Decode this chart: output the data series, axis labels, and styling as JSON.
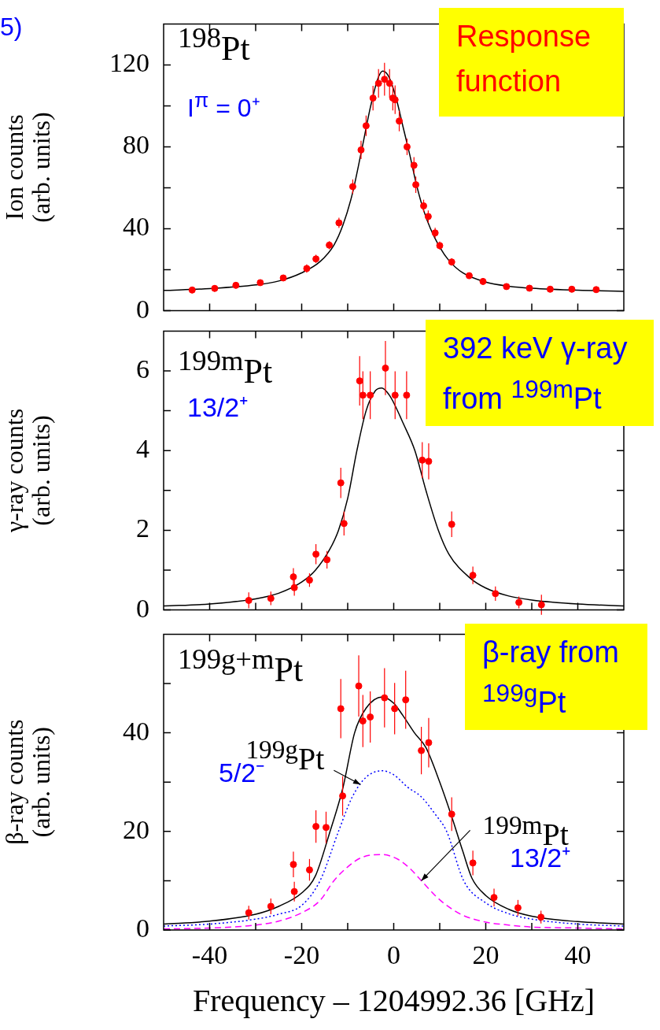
{
  "chart_data": [
    {
      "type": "scatter",
      "ylabel": "Ion counts\n(arb. units)",
      "xlim": [
        -50,
        50
      ],
      "xticks": [
        {
          "value": -40,
          "label": null
        },
        {
          "value": -30,
          "label": null
        },
        {
          "value": -20,
          "label": null
        },
        {
          "value": -10,
          "label": null
        },
        {
          "value": 0,
          "label": null
        },
        {
          "value": 10,
          "label": null
        },
        {
          "value": 20,
          "label": null
        },
        {
          "value": 30,
          "label": null
        },
        {
          "value": 40,
          "label": null
        }
      ],
      "ylim": [
        0,
        140
      ],
      "yticks": [
        0,
        {
          "value": 20,
          "label": null
        },
        40,
        {
          "value": 60,
          "label": null
        },
        80,
        {
          "value": 100,
          "label": null
        },
        120
      ],
      "tick_labels": "y",
      "annotations": [
        "5)",
        "$^{198}$Pt",
        "I$^{π}$ = 0⁺",
        "Response function"
      ],
      "series": [
        {
          "type": "scatter",
          "color": "#ff0000",
          "marker": "circle",
          "x": [
            -43.8,
            -38.9,
            -34.3,
            -29.0,
            -24.0,
            -18.9,
            -16.9,
            -14.0,
            -11.9,
            -8.9,
            -7.1,
            -6.0,
            -4.5,
            -3.3,
            -2.0,
            -0.9,
            -0.2,
            0.3,
            1.2,
            2.9,
            4.4,
            4.8,
            6.5,
            7.5,
            9.0,
            10.0,
            12.6,
            16.4,
            19.4,
            24.5,
            29.5,
            34.0,
            38.7,
            44.0
          ],
          "values": [
            10.1,
            10.9,
            12.4,
            13.7,
            16.0,
            20.6,
            25.3,
            32.0,
            42.9,
            60.6,
            78.5,
            90.3,
            103.8,
            111,
            113,
            111,
            103.8,
            103,
            92.6,
            80,
            71,
            61.5,
            51.2,
            46,
            38,
            31.8,
            23.8,
            17.1,
            14.3,
            11.8,
            11.0,
            10.5,
            10.5,
            10.3
          ],
          "errors": [
            1.5,
            1.5,
            1.5,
            1.5,
            1.5,
            2,
            2,
            2,
            2.5,
            3.5,
            4.5,
            5,
            6,
            7,
            8,
            7,
            6,
            7,
            5,
            4,
            4,
            4,
            3,
            3,
            2.5,
            2,
            1.8,
            1.5,
            1.5,
            1,
            1,
            1,
            1,
            1
          ]
        },
        {
          "type": "line",
          "color": "#000000",
          "marker": "none",
          "line_style": "solid",
          "x": [
            -50,
            -40,
            -30,
            -25,
            -20,
            -16,
            -13,
            -11,
            -9,
            -7,
            -5,
            -3.5,
            -2.4,
            -1,
            0.5,
            2,
            3.5,
            5,
            6.5,
            8,
            10,
            12,
            15,
            20,
            25,
            30,
            40,
            50
          ],
          "values": [
            9.9,
            10.8,
            12.6,
            14.5,
            18.5,
            24,
            32,
            42,
            57,
            78,
            100,
            113,
            117,
            114,
            104,
            90,
            76,
            61,
            49,
            40,
            31,
            24.5,
            18.5,
            14,
            12,
            11,
            10,
            9.5
          ]
        }
      ]
    },
    {
      "type": "scatter",
      "ylabel": "γ-ray counts\n(arb. units)",
      "xlim": [
        -50,
        50
      ],
      "xticks": [
        {
          "value": -40,
          "label": null
        },
        {
          "value": -30,
          "label": null
        },
        {
          "value": -20,
          "label": null
        },
        {
          "value": -10,
          "label": null
        },
        {
          "value": 0,
          "label": null
        },
        {
          "value": 10,
          "label": null
        },
        {
          "value": 20,
          "label": null
        },
        {
          "value": 30,
          "label": null
        },
        {
          "value": 40,
          "label": null
        }
      ],
      "ylim": [
        0,
        7
      ],
      "yticks": [
        0,
        {
          "value": 1,
          "label": null
        },
        2,
        {
          "value": 3,
          "label": null
        },
        4,
        {
          "value": 5,
          "label": null
        },
        6
      ],
      "tick_labels": "y",
      "annotations": [
        "$^{199m}$Pt",
        "13/2⁺",
        "392 keV γ-ray from $^{199m}$Pt"
      ],
      "series": [
        {
          "type": "scatter",
          "color": "#ff0000",
          "marker": "circle",
          "x": [
            -31.5,
            -26.7,
            -21.8,
            -21.6,
            -18.3,
            -16.9,
            -14.5,
            -11.5,
            -10.8,
            -7.4,
            -6.7,
            -5.1,
            -1.8,
            0.3,
            2.8,
            6.2,
            7.6,
            12.6,
            17.2,
            22.1,
            27.2,
            32.1
          ],
          "values": [
            0.24,
            0.29,
            0.83,
            0.56,
            0.75,
            1.4,
            1.26,
            3.19,
            2.17,
            5.75,
            5.39,
            5.39,
            6.07,
            5.39,
            5.39,
            3.76,
            3.73,
            2.15,
            0.87,
            0.41,
            0.19,
            0.13
          ],
          "errors": [
            0.2,
            0.17,
            0.22,
            0.2,
            0.17,
            0.25,
            0.22,
            0.38,
            0.3,
            0.62,
            0.6,
            0.6,
            0.68,
            0.6,
            0.6,
            0.45,
            0.45,
            0.32,
            0.22,
            0.18,
            0.15,
            0.25
          ]
        },
        {
          "type": "line",
          "color": "#000000",
          "marker": "none",
          "line_style": "solid",
          "x": [
            -50,
            -40,
            -30,
            -25,
            -20,
            -17,
            -14,
            -12,
            -10,
            -8,
            -6,
            -4,
            -2.6,
            -1,
            0,
            2,
            4.6,
            7,
            9.7,
            12,
            16.6,
            20,
            25,
            30,
            40,
            50
          ],
          "values": [
            0.1,
            0.15,
            0.28,
            0.42,
            0.7,
            1.0,
            1.5,
            2.0,
            2.8,
            4.0,
            5.0,
            5.5,
            5.57,
            5.4,
            5.2,
            4.7,
            4.0,
            3.0,
            2.0,
            1.4,
            0.8,
            0.55,
            0.35,
            0.25,
            0.15,
            0.1
          ]
        }
      ]
    },
    {
      "type": "scatter",
      "ylabel": "β-ray counts\n(arb. units)",
      "xlabel": "Frequency – 1204992.36 [GHz]",
      "xlim": [
        -50,
        50
      ],
      "xticks": [
        {
          "value": -30,
          "label": null
        },
        -40,
        -20,
        {
          "value": -10,
          "label": null
        },
        0,
        {
          "value": 10,
          "label": null
        },
        20,
        {
          "value": 30,
          "label": null
        },
        40
      ],
      "ylim": [
        0,
        60
      ],
      "yticks": [
        0,
        {
          "value": 10,
          "label": null
        },
        20,
        {
          "value": 30,
          "label": null
        },
        40,
        {
          "value": 50,
          "label": null
        }
      ],
      "annotations": [
        "$^{199g+m}$Pt",
        {
          "text": "$^{199g}$Pt",
          "x": -7.2,
          "y": 29.5
        },
        "5/2⁻",
        {
          "text": "$^{199m}$Pt",
          "x": 6,
          "y": 10
        },
        "13/2⁺",
        "β-ray from $^{199g}$Pt"
      ],
      "series": [
        {
          "type": "scatter",
          "color": "#ff0000",
          "marker": "circle",
          "x": [
            -31.5,
            -26.7,
            -21.8,
            -21.6,
            -18.3,
            -16.9,
            -14.7,
            -11.1,
            -11.5,
            -7.6,
            -6.7,
            -5.1,
            -2.0,
            0.2,
            2.6,
            6.0,
            7.6,
            12.6,
            17.2,
            21.8,
            27.0,
            32.0
          ],
          "values": [
            3.5,
            4.8,
            13.3,
            7.8,
            12.2,
            21.0,
            20.8,
            27.2,
            44.9,
            49.5,
            42.4,
            43.2,
            47.1,
            44.9,
            46.7,
            36.4,
            38.0,
            23.5,
            13.6,
            6.6,
            4.5,
            2.6
          ],
          "errors": [
            1.4,
            1.6,
            2.6,
            2,
            2.2,
            3.3,
            3.2,
            4,
            6,
            6.2,
            5.3,
            5.2,
            6,
            5.2,
            5.9,
            4.8,
            5,
            3.4,
            2.5,
            1.8,
            1.6,
            1.3
          ]
        },
        {
          "type": "line",
          "color": "#000000",
          "marker": "none",
          "line_style": "solid",
          "x": [
            -50,
            -40,
            -30,
            -25,
            -20,
            -17,
            -14,
            -11,
            -8.5,
            -6,
            -2.5,
            0,
            2,
            4.5,
            7,
            10,
            12.6,
            15,
            17,
            20,
            25,
            30,
            40,
            50
          ],
          "values": [
            1.2,
            1.8,
            3.2,
            4.8,
            7.5,
            11,
            19.5,
            29,
            40,
            45,
            47.3,
            46,
            43.5,
            40,
            37,
            30,
            23,
            16,
            10.5,
            7,
            4.2,
            2.8,
            1.7,
            1.2
          ]
        },
        {
          "type": "line",
          "color": "#0000ff",
          "marker": "none",
          "line_style": "dotted",
          "x": [
            -50,
            -40,
            -30,
            -25,
            -20,
            -16,
            -12,
            -9,
            -6,
            -2.5,
            0,
            3,
            6,
            9,
            11.5,
            15.2,
            20,
            25,
            30,
            40,
            50
          ],
          "values": [
            0.8,
            1.2,
            2.2,
            3.2,
            5,
            10,
            20,
            27,
            31,
            32.3,
            31.5,
            29,
            27,
            23.5,
            20,
            10,
            5.5,
            3.3,
            2.2,
            1.2,
            0.8
          ]
        },
        {
          "type": "line",
          "color": "#ff00ff",
          "marker": "none",
          "line_style": "dashed",
          "x": [
            -50,
            -40,
            -30,
            -25,
            -20,
            -16,
            -13,
            -10,
            -7,
            -2.6,
            1,
            3.5,
            6,
            9,
            11.5,
            15,
            20,
            25,
            30,
            40,
            50
          ],
          "values": [
            0.2,
            0.4,
            1,
            1.8,
            3.5,
            6,
            10,
            12.8,
            14.7,
            15.3,
            14.3,
            12.5,
            10,
            7,
            5,
            3,
            1.6,
            1,
            0.6,
            0.4,
            0.2
          ]
        }
      ]
    }
  ]
}
